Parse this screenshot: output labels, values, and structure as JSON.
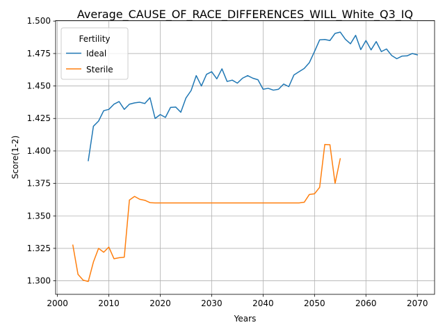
{
  "chart_data": {
    "type": "line",
    "title": "Average_CAUSE_OF_RACE_DIFFERENCES_WILL_White_Q3_IQ",
    "xlabel": "Years",
    "ylabel": "Score(1-2)",
    "xlim": [
      1999.65,
      2073.35
    ],
    "ylim": [
      1.2896,
      1.5004
    ],
    "xticks": [
      2000,
      2010,
      2020,
      2030,
      2040,
      2050,
      2060,
      2070
    ],
    "yticks": [
      1.3,
      1.325,
      1.35,
      1.375,
      1.4,
      1.425,
      1.45,
      1.475,
      1.5
    ],
    "grid": true,
    "legend": {
      "title": "Fertility",
      "position": "top-left"
    },
    "series": [
      {
        "name": "Ideal",
        "color": "#1f77b4",
        "x": [
          2006,
          2007,
          2008,
          2009,
          2010,
          2011,
          2012,
          2013,
          2014,
          2015,
          2016,
          2017,
          2018,
          2019,
          2020,
          2021,
          2022,
          2023,
          2024,
          2025,
          2026,
          2027,
          2028,
          2029,
          2030,
          2031,
          2032,
          2033,
          2034,
          2035,
          2036,
          2037,
          2038,
          2039,
          2040,
          2041,
          2042,
          2043,
          2044,
          2045,
          2046,
          2047,
          2048,
          2049,
          2050,
          2051,
          2052,
          2053,
          2054,
          2055,
          2056,
          2057,
          2058,
          2059,
          2060,
          2061,
          2062,
          2063,
          2064,
          2065,
          2066,
          2067,
          2068,
          2069,
          2070
        ],
        "y": [
          1.3925,
          1.419,
          1.423,
          1.431,
          1.432,
          1.436,
          1.438,
          1.432,
          1.436,
          1.437,
          1.4375,
          1.4365,
          1.441,
          1.425,
          1.428,
          1.4258,
          1.4335,
          1.4338,
          1.4298,
          1.4408,
          1.4465,
          1.458,
          1.45,
          1.459,
          1.461,
          1.4555,
          1.4632,
          1.4535,
          1.4545,
          1.4522,
          1.456,
          1.458,
          1.456,
          1.4548,
          1.4475,
          1.4482,
          1.4468,
          1.4475,
          1.4515,
          1.4495,
          1.4585,
          1.461,
          1.4635,
          1.468,
          1.4765,
          1.4855,
          1.4858,
          1.485,
          1.4905,
          1.4915,
          1.486,
          1.4825,
          1.489,
          1.478,
          1.485,
          1.4778,
          1.4842,
          1.4765,
          1.4785,
          1.4735,
          1.471,
          1.473,
          1.4732,
          1.475,
          1.474
        ]
      },
      {
        "name": "Sterile",
        "color": "#ff7f0e",
        "x": [
          2003,
          2004,
          2005,
          2006,
          2007,
          2008,
          2009,
          2010,
          2011,
          2012,
          2013,
          2014,
          2015,
          2016,
          2017,
          2018,
          2019,
          2020,
          2021,
          2022,
          2023,
          2024,
          2025,
          2026,
          2027,
          2028,
          2029,
          2030,
          2031,
          2032,
          2033,
          2034,
          2035,
          2036,
          2037,
          2038,
          2039,
          2040,
          2041,
          2042,
          2043,
          2044,
          2045,
          2046,
          2047,
          2048,
          2049,
          2050,
          2051,
          2052,
          2053,
          2054,
          2055
        ],
        "y": [
          1.3275,
          1.305,
          1.3005,
          1.2995,
          1.3145,
          1.325,
          1.322,
          1.326,
          1.317,
          1.3178,
          1.3182,
          1.3622,
          1.365,
          1.3628,
          1.362,
          1.3602,
          1.36,
          1.36,
          1.36,
          1.36,
          1.36,
          1.36,
          1.36,
          1.36,
          1.36,
          1.36,
          1.36,
          1.36,
          1.36,
          1.36,
          1.36,
          1.36,
          1.36,
          1.36,
          1.36,
          1.36,
          1.36,
          1.36,
          1.36,
          1.36,
          1.36,
          1.36,
          1.36,
          1.36,
          1.36,
          1.3605,
          1.3665,
          1.367,
          1.372,
          1.405,
          1.4048,
          1.375,
          1.394
        ]
      }
    ]
  }
}
